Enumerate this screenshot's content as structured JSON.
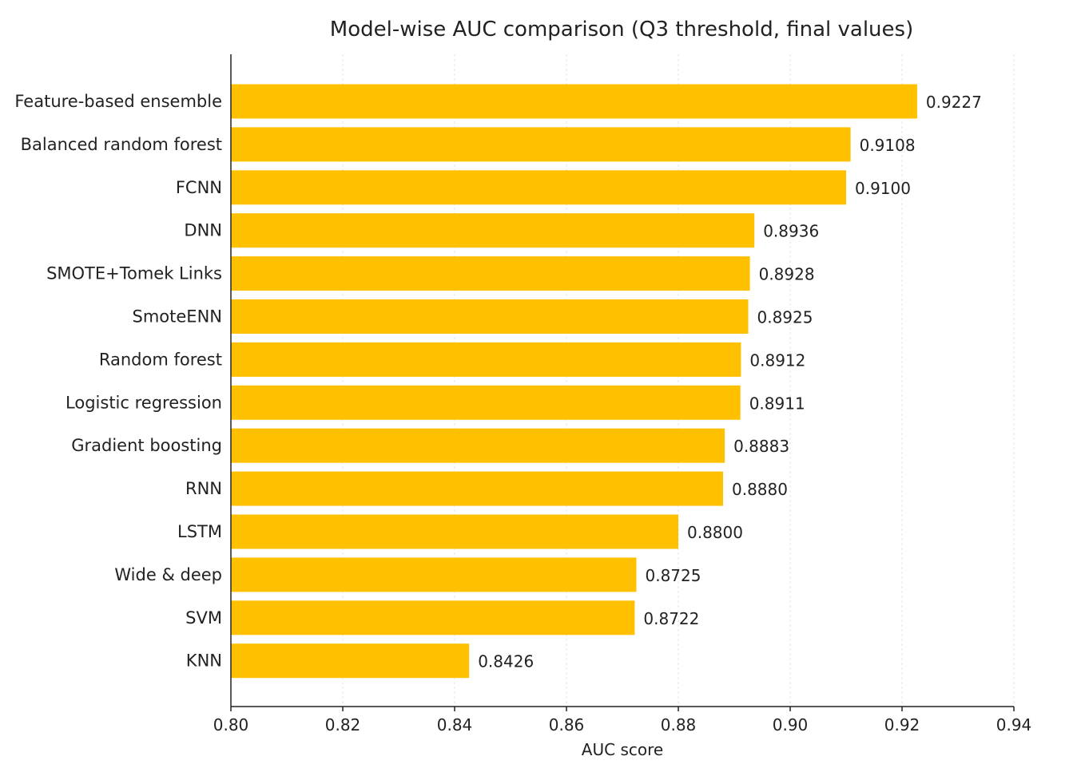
{
  "chart_data": {
    "type": "bar",
    "orientation": "horizontal",
    "title": "Model-wise AUC comparison (Q3 threshold, final values)",
    "xlabel": "AUC score",
    "ylabel": "",
    "xlim": [
      0.8,
      0.94
    ],
    "xticks": [
      0.8,
      0.82,
      0.84,
      0.86,
      0.88,
      0.9,
      0.92,
      0.94
    ],
    "xtick_labels": [
      "0.80",
      "0.82",
      "0.84",
      "0.86",
      "0.88",
      "0.90",
      "0.92",
      "0.94"
    ],
    "grid": true,
    "bar_color": "#FFC000",
    "categories": [
      "Feature-based ensemble",
      "Balanced random forest",
      "FCNN",
      "DNN",
      "SMOTE+Tomek Links",
      "SmoteENN",
      "Random forest",
      "Logistic regression",
      "Gradient boosting",
      "RNN",
      "LSTM",
      "Wide & deep",
      "SVM",
      "KNN"
    ],
    "values": [
      0.9227,
      0.9108,
      0.91,
      0.8936,
      0.8928,
      0.8925,
      0.8912,
      0.8911,
      0.8883,
      0.888,
      0.88,
      0.8725,
      0.8722,
      0.8426
    ],
    "value_labels": [
      "0.9227",
      "0.9108",
      "0.9100",
      "0.8936",
      "0.8928",
      "0.8925",
      "0.8912",
      "0.8911",
      "0.8883",
      "0.8880",
      "0.8800",
      "0.8725",
      "0.8722",
      "0.8426"
    ]
  }
}
